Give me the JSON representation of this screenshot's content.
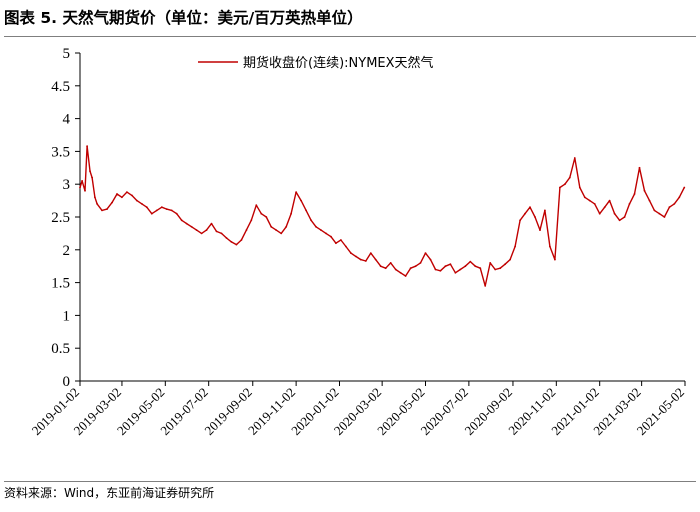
{
  "page": {
    "title": "图表 5.   天然气期货价（单位：美元/百万英热单位）",
    "source": "资料来源：Wind，东亚前海证券研究所"
  },
  "colors": {
    "series": "#c00000",
    "axis": "#000000",
    "rule": "#7f7f7f"
  },
  "chart_data": {
    "type": "line",
    "title": "",
    "xlabel": "",
    "ylabel": "",
    "ylim": [
      0,
      5
    ],
    "yticks": [
      0,
      0.5,
      1,
      1.5,
      2,
      2.5,
      3,
      3.5,
      4,
      4.5,
      5
    ],
    "ytick_labels": [
      "0",
      "0.5",
      "1",
      "1.5",
      "2",
      "2.5",
      "3",
      "3.5",
      "4",
      "4.5",
      "5"
    ],
    "xlim": [
      "2019-01-02",
      "2021-05-02"
    ],
    "xtick_labels": [
      "2019-01-02",
      "2019-03-02",
      "2019-05-02",
      "2019-07-02",
      "2019-09-02",
      "2019-11-02",
      "2020-01-02",
      "2020-03-02",
      "2020-05-02",
      "2020-07-02",
      "2020-09-02",
      "2020-11-02",
      "2021-01-02",
      "2021-03-02",
      "2021-05-02"
    ],
    "grid": false,
    "legend_position": "top-center",
    "series": [
      {
        "name": "期货收盘价(连续):NYMEX天然气",
        "x": [
          "2019-01-02",
          "2019-01-05",
          "2019-01-09",
          "2019-01-12",
          "2019-01-16",
          "2019-01-19",
          "2019-01-23",
          "2019-01-26",
          "2019-02-02",
          "2019-02-09",
          "2019-02-16",
          "2019-02-23",
          "2019-03-02",
          "2019-03-09",
          "2019-03-16",
          "2019-03-23",
          "2019-03-30",
          "2019-04-06",
          "2019-04-13",
          "2019-04-20",
          "2019-04-27",
          "2019-05-04",
          "2019-05-11",
          "2019-05-18",
          "2019-05-25",
          "2019-06-01",
          "2019-06-08",
          "2019-06-15",
          "2019-06-22",
          "2019-06-29",
          "2019-07-06",
          "2019-07-13",
          "2019-07-20",
          "2019-07-27",
          "2019-08-03",
          "2019-08-10",
          "2019-08-17",
          "2019-08-24",
          "2019-08-31",
          "2019-09-07",
          "2019-09-14",
          "2019-09-21",
          "2019-09-28",
          "2019-10-05",
          "2019-10-12",
          "2019-10-19",
          "2019-10-26",
          "2019-11-02",
          "2019-11-09",
          "2019-11-16",
          "2019-11-23",
          "2019-11-30",
          "2019-12-07",
          "2019-12-14",
          "2019-12-21",
          "2019-12-28",
          "2020-01-04",
          "2020-01-11",
          "2020-01-18",
          "2020-01-25",
          "2020-02-01",
          "2020-02-08",
          "2020-02-15",
          "2020-02-22",
          "2020-02-29",
          "2020-03-07",
          "2020-03-14",
          "2020-03-21",
          "2020-03-28",
          "2020-04-04",
          "2020-04-11",
          "2020-04-18",
          "2020-04-25",
          "2020-05-02",
          "2020-05-09",
          "2020-05-16",
          "2020-05-23",
          "2020-05-30",
          "2020-06-06",
          "2020-06-13",
          "2020-06-20",
          "2020-06-27",
          "2020-07-04",
          "2020-07-11",
          "2020-07-18",
          "2020-07-25",
          "2020-08-01",
          "2020-08-08",
          "2020-08-15",
          "2020-08-22",
          "2020-08-29",
          "2020-09-05",
          "2020-09-12",
          "2020-09-19",
          "2020-09-26",
          "2020-10-03",
          "2020-10-10",
          "2020-10-17",
          "2020-10-24",
          "2020-10-31",
          "2020-11-07",
          "2020-11-14",
          "2020-11-21",
          "2020-11-28",
          "2020-12-05",
          "2020-12-12",
          "2020-12-19",
          "2020-12-26",
          "2021-01-02",
          "2021-01-09",
          "2021-01-16",
          "2021-01-23",
          "2021-01-30",
          "2021-02-06",
          "2021-02-13",
          "2021-02-20",
          "2021-02-27",
          "2021-03-06",
          "2021-03-13",
          "2021-03-20",
          "2021-03-27",
          "2021-04-03",
          "2021-04-10",
          "2021-04-17",
          "2021-04-24",
          "2021-05-01"
        ],
        "values": [
          2.95,
          3.05,
          2.9,
          3.58,
          3.2,
          3.1,
          2.8,
          2.7,
          2.6,
          2.62,
          2.72,
          2.85,
          2.8,
          2.88,
          2.83,
          2.75,
          2.7,
          2.65,
          2.55,
          2.6,
          2.65,
          2.62,
          2.6,
          2.55,
          2.45,
          2.4,
          2.35,
          2.3,
          2.25,
          2.3,
          2.4,
          2.28,
          2.25,
          2.18,
          2.12,
          2.08,
          2.15,
          2.3,
          2.45,
          2.68,
          2.55,
          2.5,
          2.35,
          2.3,
          2.25,
          2.35,
          2.55,
          2.88,
          2.75,
          2.6,
          2.45,
          2.35,
          2.3,
          2.25,
          2.2,
          2.1,
          2.15,
          2.05,
          1.95,
          1.9,
          1.85,
          1.83,
          1.95,
          1.85,
          1.75,
          1.72,
          1.8,
          1.7,
          1.65,
          1.6,
          1.72,
          1.75,
          1.8,
          1.95,
          1.85,
          1.7,
          1.68,
          1.75,
          1.78,
          1.65,
          1.7,
          1.75,
          1.82,
          1.75,
          1.72,
          1.45,
          1.8,
          1.7,
          1.72,
          1.78,
          1.85,
          2.05,
          2.45,
          2.55,
          2.65,
          2.5,
          2.3,
          2.6,
          2.05,
          1.85,
          2.95,
          3.0,
          3.1,
          3.4,
          2.95,
          2.8,
          2.75,
          2.7,
          2.55,
          2.65,
          2.75,
          2.55,
          2.45,
          2.5,
          2.7,
          2.85,
          3.25,
          2.9,
          2.75,
          2.6,
          2.55,
          2.5,
          2.65,
          2.7,
          2.8,
          2.95
        ]
      }
    ]
  }
}
